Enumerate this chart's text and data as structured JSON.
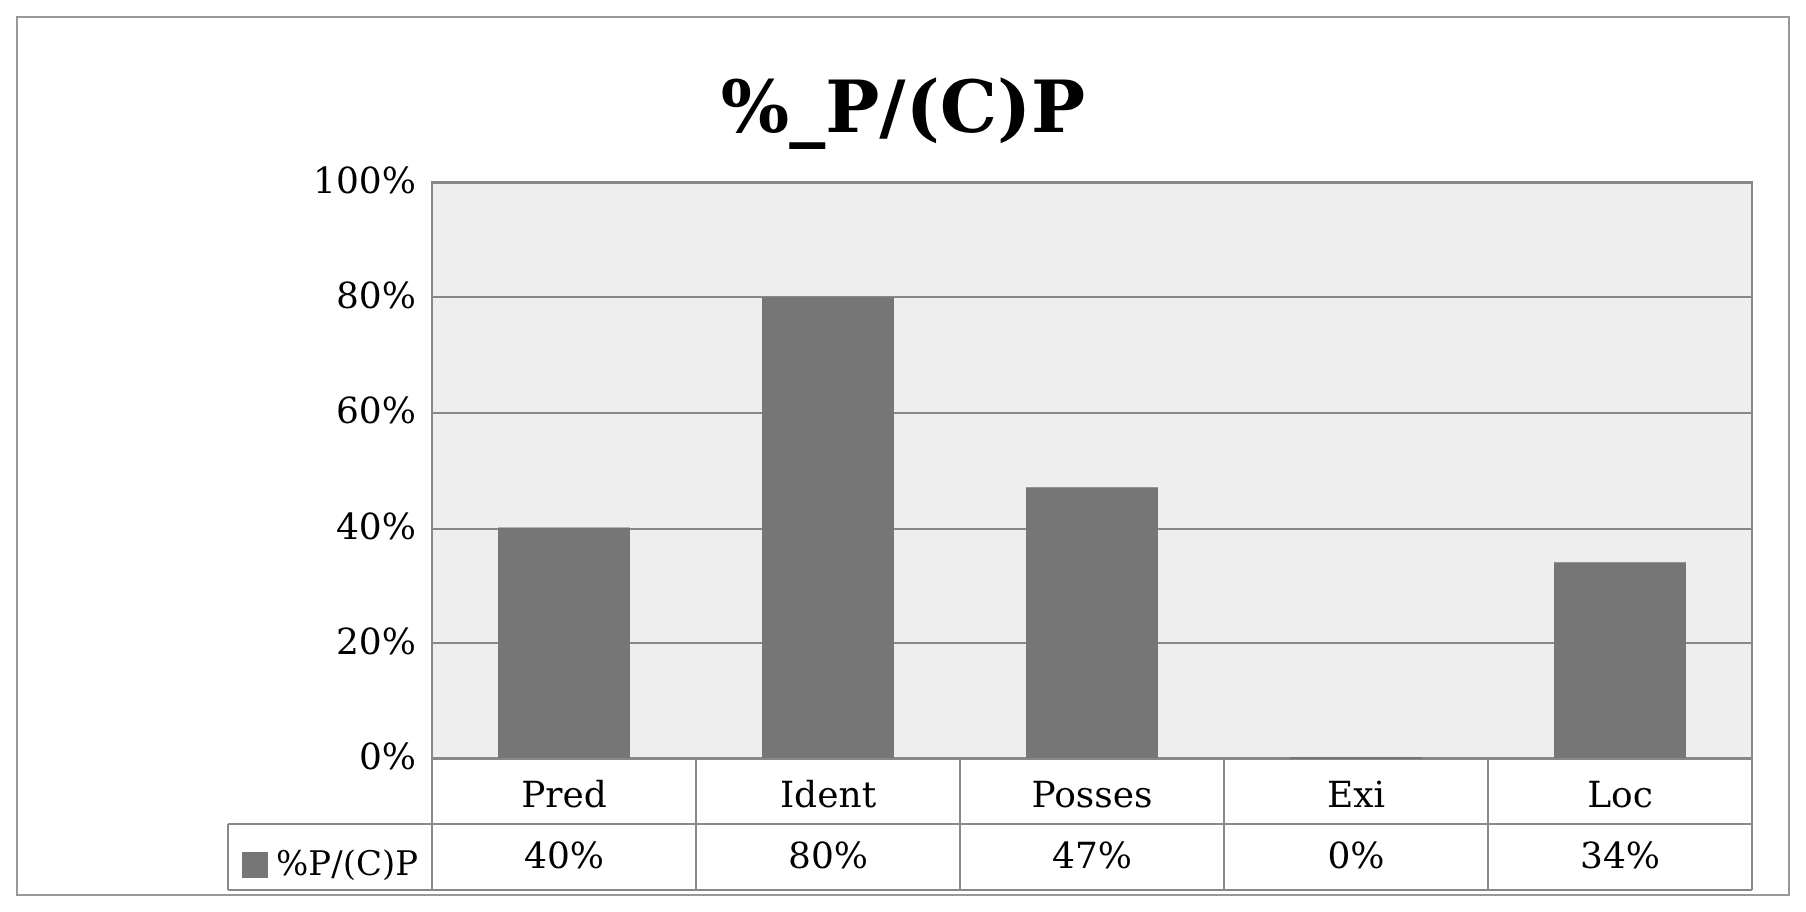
{
  "chart_data": {
    "type": "bar",
    "title": "%_P/(C)P",
    "categories": [
      "Pred",
      "Ident",
      "Posses",
      "Exi",
      "Loc"
    ],
    "series": [
      {
        "name": "%P/(C)P",
        "color": "#767676",
        "values": [
          40,
          80,
          47,
          0,
          34
        ],
        "value_labels": [
          "40%",
          "80%",
          "47%",
          "0%",
          "34%"
        ]
      }
    ],
    "ylim": [
      0,
      100
    ],
    "yticks": [
      {
        "value": 0,
        "label": "0%"
      },
      {
        "value": 20,
        "label": "20%"
      },
      {
        "value": 40,
        "label": "40%"
      },
      {
        "value": 60,
        "label": "60%"
      },
      {
        "value": 80,
        "label": "80%"
      },
      {
        "value": 100,
        "label": "100%"
      }
    ],
    "grid": "y",
    "legend": "bottom left"
  }
}
